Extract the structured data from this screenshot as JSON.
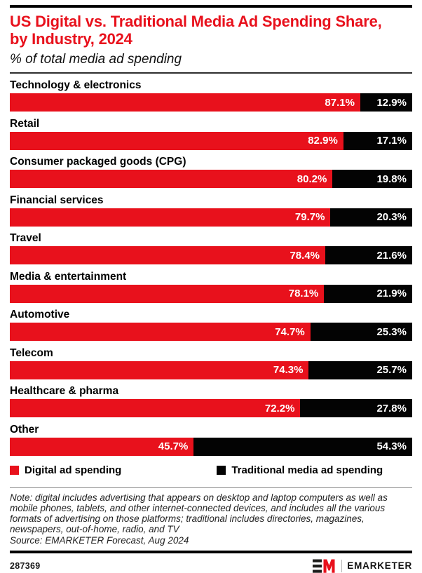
{
  "header": {
    "title": "US Digital vs. Traditional Media Ad Spending Share, by Industry, 2024",
    "subtitle": "% of total media ad spending"
  },
  "chart_data": {
    "type": "bar",
    "orientation": "horizontal-stacked",
    "title": "US Digital vs. Traditional Media Ad Spending Share, by Industry, 2024",
    "subtitle": "% of total media ad spending",
    "value_suffix": "%",
    "xlim": [
      0,
      100
    ],
    "grid": false,
    "legend_position": "bottom",
    "categories": [
      "Technology & electronics",
      "Retail",
      "Consumer packaged goods (CPG)",
      "Financial services",
      "Travel",
      "Media & entertainment",
      "Automotive",
      "Telecom",
      "Healthcare & pharma",
      "Other"
    ],
    "series": [
      {
        "name": "Digital ad spending",
        "color": "#e8111c",
        "values": [
          87.1,
          82.9,
          80.2,
          79.7,
          78.4,
          78.1,
          74.7,
          74.3,
          72.2,
          45.7
        ]
      },
      {
        "name": "Traditional media ad spending",
        "color": "#030303",
        "values": [
          12.9,
          17.1,
          19.8,
          20.3,
          21.6,
          21.9,
          25.3,
          25.7,
          27.8,
          54.3
        ]
      }
    ]
  },
  "legend": {
    "items": [
      {
        "label": "Digital ad spending",
        "color": "#e8111c"
      },
      {
        "label": "Traditional media ad spending",
        "color": "#030303"
      }
    ]
  },
  "note": {
    "text": "Note: digital includes advertising that appears on desktop and laptop computers as well as mobile phones, tablets, and other internet-connected devices, and includes all the various formats of advertising on those platforms; traditional includes directories, magazines, newspapers, out-of-home, radio, and TV",
    "source": "Source: EMARKETER Forecast, Aug 2024"
  },
  "footer": {
    "chart_id": "287369",
    "brand": "EMARKETER"
  },
  "colors": {
    "digital": "#e8111c",
    "traditional": "#030303",
    "title": "#e8111c"
  }
}
